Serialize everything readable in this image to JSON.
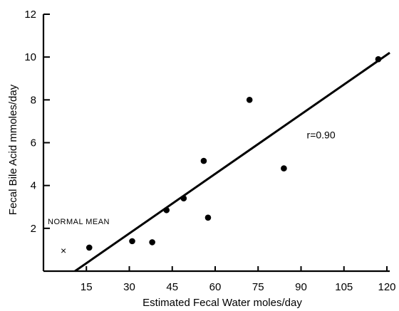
{
  "chart_data": {
    "type": "scatter",
    "title": "",
    "xlabel": "Estimated Fecal Water moles/day",
    "ylabel": "Fecal Bile Acid mmoles/day",
    "xlim": [
      0,
      120
    ],
    "ylim": [
      0,
      12
    ],
    "xticks": [
      15,
      30,
      45,
      60,
      75,
      90,
      105,
      120
    ],
    "yticks": [
      2,
      4,
      6,
      8,
      10,
      12
    ],
    "grid": false,
    "legend": "none",
    "series": [
      {
        "values": [
          {
            "x": 16,
            "y": 1.1
          },
          {
            "x": 31,
            "y": 1.4
          },
          {
            "x": 38,
            "y": 1.35
          },
          {
            "x": 43,
            "y": 2.85
          },
          {
            "x": 49,
            "y": 3.4
          },
          {
            "x": 56,
            "y": 5.15
          },
          {
            "x": 57.5,
            "y": 2.5
          },
          {
            "x": 72,
            "y": 8.0
          },
          {
            "x": 84,
            "y": 4.8
          },
          {
            "x": 117,
            "y": 9.9
          }
        ]
      }
    ],
    "regression_line": {
      "x": [
        11,
        121
      ],
      "y": [
        0,
        10.2
      ]
    },
    "normal_mean_marker": {
      "x": 7,
      "y": 1.0,
      "symbol": "×"
    },
    "annotations": [
      {
        "text": "r=0.90",
        "x": 92,
        "y": 6.2
      },
      {
        "text": "NORMAL MEAN",
        "x": 1.5,
        "y": 2.2
      }
    ]
  }
}
